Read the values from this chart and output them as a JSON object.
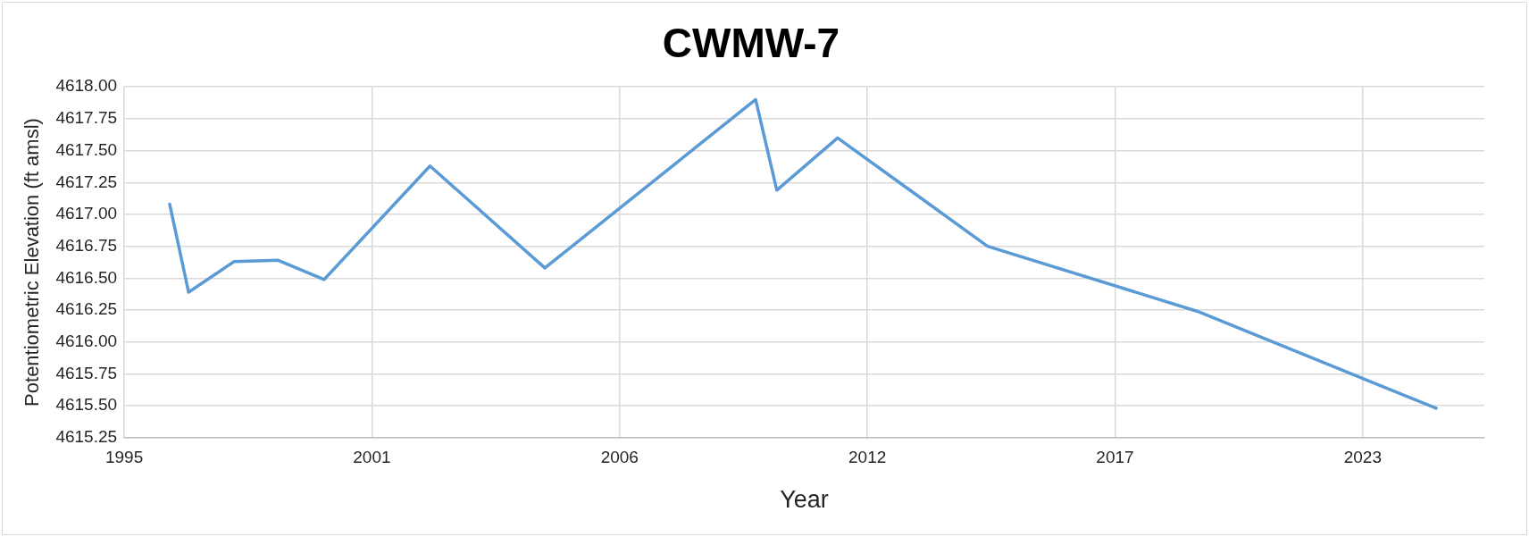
{
  "chart_data": {
    "type": "line",
    "title": "CWMW-7",
    "xlabel": "Year",
    "ylabel": "Potentiometric Elevation (ft amsl)",
    "x": [
      1996.51,
      1996.93,
      1997.94,
      1998.92,
      1999.94,
      2002.29,
      2004.84,
      2009.52,
      2009.99,
      2011.34,
      2014.67,
      2019.33,
      2024.63
    ],
    "series": [
      {
        "color": "#5b9bd5",
        "values": [
          4617.08,
          4616.39,
          4616.63,
          4616.64,
          4616.49,
          4617.38,
          4616.58,
          4617.9,
          4617.19,
          4617.6,
          4616.75,
          4616.24,
          4615.48
        ]
      }
    ],
    "xlim": [
      1995.5,
      2025.7
    ],
    "xticks": [
      {
        "value": 1995.5,
        "label": "1995"
      },
      {
        "value": 2001,
        "label": "2001"
      },
      {
        "value": 2006.5,
        "label": "2006"
      },
      {
        "value": 2012,
        "label": "2012"
      },
      {
        "value": 2017.5,
        "label": "2017"
      },
      {
        "value": 2023,
        "label": "2023"
      }
    ],
    "ylim": [
      4615.25,
      4618
    ],
    "yticks": [
      {
        "value": 4615.25,
        "label": "4615.25"
      },
      {
        "value": 4615.5,
        "label": "4615.50"
      },
      {
        "value": 4615.75,
        "label": "4615.75"
      },
      {
        "value": 4616,
        "label": "4616.00"
      },
      {
        "value": 4616.25,
        "label": "4616.25"
      },
      {
        "value": 4616.5,
        "label": "4616.50"
      },
      {
        "value": 4616.75,
        "label": "4616.75"
      },
      {
        "value": 4617,
        "label": "4617.00"
      },
      {
        "value": 4617.25,
        "label": "4617.25"
      },
      {
        "value": 4617.5,
        "label": "4617.50"
      },
      {
        "value": 4617.75,
        "label": "4617.75"
      },
      {
        "value": 4618,
        "label": "4618.00"
      }
    ],
    "grid": true,
    "marker": "none",
    "line_style": "solid"
  }
}
